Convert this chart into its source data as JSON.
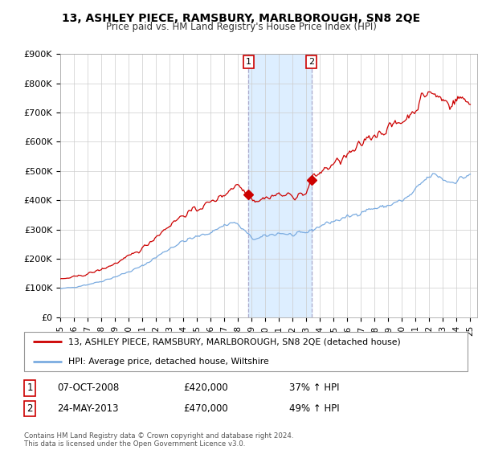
{
  "title": "13, ASHLEY PIECE, RAMSBURY, MARLBOROUGH, SN8 2QE",
  "subtitle": "Price paid vs. HM Land Registry's House Price Index (HPI)",
  "ylim": [
    0,
    900000
  ],
  "yticks": [
    0,
    100000,
    200000,
    300000,
    400000,
    500000,
    600000,
    700000,
    800000,
    900000
  ],
  "ytick_labels": [
    "£0",
    "£100K",
    "£200K",
    "£300K",
    "£400K",
    "£500K",
    "£600K",
    "£700K",
    "£800K",
    "£900K"
  ],
  "xlim_start": 1995.0,
  "xlim_end": 2025.5,
  "sale1_date": 2008.77,
  "sale1_price": 420000,
  "sale1_label": "1",
  "sale1_text": "07-OCT-2008",
  "sale2_date": 2013.38,
  "sale2_price": 470000,
  "sale2_label": "2",
  "sale2_text": "24-MAY-2013",
  "sale1_pct": "37% ↑ HPI",
  "sale2_pct": "49% ↑ HPI",
  "shade_color": "#ddeeff",
  "line1_color": "#cc0000",
  "line2_color": "#7aabe0",
  "legend1": "13, ASHLEY PIECE, RAMSBURY, MARLBOROUGH, SN8 2QE (detached house)",
  "legend2": "HPI: Average price, detached house, Wiltshire",
  "footer": "Contains HM Land Registry data © Crown copyright and database right 2024.\nThis data is licensed under the Open Government Licence v3.0.",
  "background_color": "#ffffff",
  "grid_color": "#cccccc"
}
